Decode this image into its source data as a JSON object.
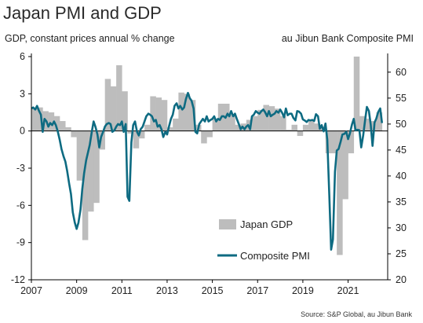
{
  "title": "Japan PMI and GDP",
  "left_axis_caption": "GDP, constant prices annual % change",
  "right_axis_caption": "au Jibun Bank Composite PMI",
  "source": "Source: S&P Global, au Jibun Bank",
  "colors": {
    "gdp_bar": "#bdbdbd",
    "pmi_line": "#0e6b82",
    "axis": "#000000"
  },
  "chart_data": {
    "type": "bar+line",
    "title": "Japan PMI and GDP",
    "x_ticks": [
      "2007",
      "2009",
      "2011",
      "2013",
      "2015",
      "2017",
      "2019",
      "2021"
    ],
    "left_axis": {
      "label": "GDP, constant prices annual % change",
      "range": [
        -12,
        6
      ],
      "ticks": [
        "6",
        "3",
        "0",
        "-3",
        "-6",
        "-9",
        "-12"
      ]
    },
    "right_axis": {
      "label": "au Jibun Bank Composite PMI",
      "range": [
        20,
        63
      ],
      "ticks": [
        "60",
        "55",
        "50",
        "45",
        "40",
        "35",
        "30",
        "25",
        "20"
      ]
    },
    "legend": [
      "Japan GDP",
      "Composite PMI"
    ],
    "series": [
      {
        "name": "Japan GDP",
        "kind": "bar",
        "axis": "left",
        "points": [
          [
            2007.0,
            1.8
          ],
          [
            2007.25,
            1.9
          ],
          [
            2007.5,
            1.6
          ],
          [
            2007.75,
            1.5
          ],
          [
            2008.0,
            1.2
          ],
          [
            2008.25,
            0.8
          ],
          [
            2008.5,
            0.3
          ],
          [
            2008.75,
            -0.5
          ],
          [
            2009.0,
            -4.0
          ],
          [
            2009.25,
            -8.8
          ],
          [
            2009.5,
            -6.5
          ],
          [
            2009.75,
            -5.8
          ],
          [
            2010.0,
            -1.5
          ],
          [
            2010.25,
            4.2
          ],
          [
            2010.5,
            3.6
          ],
          [
            2010.75,
            5.3
          ],
          [
            2011.0,
            3.2
          ],
          [
            2011.25,
            -0.2
          ],
          [
            2011.5,
            -1.4
          ],
          [
            2011.75,
            -0.6
          ],
          [
            2012.0,
            0.5
          ],
          [
            2012.25,
            2.8
          ],
          [
            2012.5,
            2.7
          ],
          [
            2012.75,
            2.5
          ],
          [
            2013.0,
            0.3
          ],
          [
            2013.25,
            1.0
          ],
          [
            2013.5,
            3.1
          ],
          [
            2013.75,
            3.0
          ],
          [
            2014.0,
            2.5
          ],
          [
            2014.25,
            0.5
          ],
          [
            2014.5,
            -1.0
          ],
          [
            2014.75,
            -0.5
          ],
          [
            2015.0,
            1.0
          ],
          [
            2015.25,
            2.2
          ],
          [
            2015.5,
            2.2
          ],
          [
            2015.75,
            1.3
          ],
          [
            2016.0,
            0.5
          ],
          [
            2016.25,
            0.6
          ],
          [
            2016.5,
            0.9
          ],
          [
            2016.75,
            1.2
          ],
          [
            2017.0,
            1.7
          ],
          [
            2017.25,
            2.1
          ],
          [
            2017.5,
            2.0
          ],
          [
            2017.75,
            1.8
          ],
          [
            2018.0,
            1.2
          ],
          [
            2018.25,
            0.1
          ],
          [
            2018.5,
            0.5
          ],
          [
            2018.75,
            -0.4
          ],
          [
            2019.0,
            0.5
          ],
          [
            2019.25,
            0.8
          ],
          [
            2019.5,
            0.6
          ],
          [
            2019.75,
            0.3
          ],
          [
            2020.0,
            -1.8
          ],
          [
            2020.25,
            -1.8
          ],
          [
            2020.5,
            -10.0
          ],
          [
            2020.75,
            -5.5
          ],
          [
            2021.0,
            -1.8
          ],
          [
            2021.25,
            6.0
          ],
          [
            2021.5,
            1.2
          ],
          [
            2021.75,
            1.0
          ],
          [
            2022.0,
            0.8
          ],
          [
            2022.25,
            1.5
          ]
        ]
      },
      {
        "name": "Composite PMI",
        "kind": "line",
        "axis": "right",
        "points": [
          [
            2007.0,
            53.0
          ],
          [
            2007.08,
            53.2
          ],
          [
            2007.17,
            52.8
          ],
          [
            2007.25,
            53.5
          ],
          [
            2007.33,
            52.6
          ],
          [
            2007.42,
            51.8
          ],
          [
            2007.5,
            48.5
          ],
          [
            2007.58,
            51.0
          ],
          [
            2007.67,
            50.5
          ],
          [
            2007.75,
            49.5
          ],
          [
            2007.83,
            50.2
          ],
          [
            2007.92,
            49.8
          ],
          [
            2008.0,
            50.5
          ],
          [
            2008.08,
            49.8
          ],
          [
            2008.17,
            48.5
          ],
          [
            2008.25,
            47.0
          ],
          [
            2008.33,
            45.2
          ],
          [
            2008.42,
            43.8
          ],
          [
            2008.5,
            42.8
          ],
          [
            2008.58,
            41.0
          ],
          [
            2008.67,
            38.5
          ],
          [
            2008.75,
            36.5
          ],
          [
            2008.83,
            33.0
          ],
          [
            2008.92,
            31.0
          ],
          [
            2009.0,
            29.8
          ],
          [
            2009.08,
            31.0
          ],
          [
            2009.17,
            33.5
          ],
          [
            2009.25,
            37.5
          ],
          [
            2009.33,
            40.5
          ],
          [
            2009.42,
            43.0
          ],
          [
            2009.5,
            44.5
          ],
          [
            2009.58,
            46.0
          ],
          [
            2009.67,
            48.5
          ],
          [
            2009.75,
            50.5
          ],
          [
            2009.83,
            49.5
          ],
          [
            2009.92,
            48.0
          ],
          [
            2010.0,
            45.5
          ],
          [
            2010.08,
            47.5
          ],
          [
            2010.17,
            48.5
          ],
          [
            2010.25,
            49.5
          ],
          [
            2010.33,
            50.0
          ],
          [
            2010.42,
            50.2
          ],
          [
            2010.5,
            50.0
          ],
          [
            2010.58,
            48.5
          ],
          [
            2010.67,
            48.8
          ],
          [
            2010.75,
            49.5
          ],
          [
            2010.83,
            50.0
          ],
          [
            2010.92,
            49.8
          ],
          [
            2011.0,
            50.5
          ],
          [
            2011.08,
            48.5
          ],
          [
            2011.17,
            50.0
          ],
          [
            2011.25,
            36.0
          ],
          [
            2011.33,
            35.2
          ],
          [
            2011.42,
            46.5
          ],
          [
            2011.5,
            49.8
          ],
          [
            2011.58,
            50.5
          ],
          [
            2011.67,
            48.5
          ],
          [
            2011.75,
            47.8
          ],
          [
            2011.83,
            49.0
          ],
          [
            2011.92,
            49.5
          ],
          [
            2012.0,
            50.5
          ],
          [
            2012.08,
            51.5
          ],
          [
            2012.17,
            52.0
          ],
          [
            2012.25,
            51.8
          ],
          [
            2012.33,
            51.5
          ],
          [
            2012.42,
            50.5
          ],
          [
            2012.5,
            50.8
          ],
          [
            2012.58,
            49.5
          ],
          [
            2012.67,
            49.8
          ],
          [
            2012.75,
            49.0
          ],
          [
            2012.83,
            47.5
          ],
          [
            2012.92,
            48.5
          ],
          [
            2013.0,
            48.0
          ],
          [
            2013.08,
            49.5
          ],
          [
            2013.17,
            51.0
          ],
          [
            2013.25,
            51.8
          ],
          [
            2013.33,
            53.5
          ],
          [
            2013.42,
            54.0
          ],
          [
            2013.5,
            53.0
          ],
          [
            2013.58,
            53.5
          ],
          [
            2013.67,
            52.8
          ],
          [
            2013.75,
            53.2
          ],
          [
            2013.83,
            54.8
          ],
          [
            2013.92,
            56.0
          ],
          [
            2014.0,
            55.0
          ],
          [
            2014.08,
            54.5
          ],
          [
            2014.17,
            53.0
          ],
          [
            2014.25,
            48.5
          ],
          [
            2014.33,
            48.2
          ],
          [
            2014.42,
            50.0
          ],
          [
            2014.5,
            50.5
          ],
          [
            2014.58,
            51.0
          ],
          [
            2014.67,
            50.5
          ],
          [
            2014.75,
            51.5
          ],
          [
            2014.83,
            50.5
          ],
          [
            2014.92,
            50.8
          ],
          [
            2015.0,
            51.0
          ],
          [
            2015.08,
            51.5
          ],
          [
            2015.17,
            50.5
          ],
          [
            2015.25,
            51.0
          ],
          [
            2015.33,
            50.8
          ],
          [
            2015.42,
            51.5
          ],
          [
            2015.5,
            51.5
          ],
          [
            2015.58,
            51.2
          ],
          [
            2015.67,
            52.0
          ],
          [
            2015.75,
            51.5
          ],
          [
            2015.83,
            52.5
          ],
          [
            2015.92,
            51.5
          ],
          [
            2016.0,
            52.0
          ],
          [
            2016.08,
            51.0
          ],
          [
            2016.17,
            50.0
          ],
          [
            2016.25,
            49.0
          ],
          [
            2016.33,
            49.5
          ],
          [
            2016.42,
            49.0
          ],
          [
            2016.5,
            49.5
          ],
          [
            2016.58,
            49.8
          ],
          [
            2016.67,
            49.0
          ],
          [
            2016.75,
            51.5
          ],
          [
            2016.83,
            51.8
          ],
          [
            2016.92,
            52.5
          ],
          [
            2017.0,
            52.2
          ],
          [
            2017.08,
            52.0
          ],
          [
            2017.17,
            52.5
          ],
          [
            2017.25,
            52.8
          ],
          [
            2017.33,
            52.3
          ],
          [
            2017.42,
            51.5
          ],
          [
            2017.5,
            52.5
          ],
          [
            2017.58,
            51.5
          ],
          [
            2017.67,
            51.8
          ],
          [
            2017.75,
            52.0
          ],
          [
            2017.83,
            52.5
          ],
          [
            2017.92,
            52.2
          ],
          [
            2018.0,
            52.8
          ],
          [
            2018.08,
            52.2
          ],
          [
            2018.17,
            51.3
          ],
          [
            2018.25,
            53.0
          ],
          [
            2018.33,
            51.7
          ],
          [
            2018.42,
            52.0
          ],
          [
            2018.5,
            52.0
          ],
          [
            2018.58,
            51.2
          ],
          [
            2018.67,
            50.7
          ],
          [
            2018.75,
            52.5
          ],
          [
            2018.83,
            52.4
          ],
          [
            2018.92,
            52.0
          ],
          [
            2019.0,
            50.9
          ],
          [
            2019.08,
            50.7
          ],
          [
            2019.17,
            50.4
          ],
          [
            2019.25,
            50.8
          ],
          [
            2019.33,
            50.7
          ],
          [
            2019.42,
            50.8
          ],
          [
            2019.5,
            50.6
          ],
          [
            2019.58,
            51.9
          ],
          [
            2019.67,
            51.5
          ],
          [
            2019.75,
            49.1
          ],
          [
            2019.83,
            49.8
          ],
          [
            2019.92,
            48.6
          ],
          [
            2020.0,
            50.1
          ],
          [
            2020.08,
            47.0
          ],
          [
            2020.17,
            36.2
          ],
          [
            2020.25,
            25.8
          ],
          [
            2020.33,
            27.8
          ],
          [
            2020.42,
            40.8
          ],
          [
            2020.5,
            44.9
          ],
          [
            2020.58,
            45.2
          ],
          [
            2020.67,
            46.6
          ],
          [
            2020.75,
            48.0
          ],
          [
            2020.83,
            48.1
          ],
          [
            2020.92,
            48.5
          ],
          [
            2021.0,
            47.1
          ],
          [
            2021.08,
            48.2
          ],
          [
            2021.17,
            49.9
          ],
          [
            2021.25,
            51.0
          ],
          [
            2021.33,
            48.8
          ],
          [
            2021.42,
            48.9
          ],
          [
            2021.5,
            48.8
          ],
          [
            2021.58,
            45.5
          ],
          [
            2021.67,
            47.9
          ],
          [
            2021.75,
            50.7
          ],
          [
            2021.83,
            53.3
          ],
          [
            2021.92,
            52.5
          ],
          [
            2022.0,
            49.9
          ],
          [
            2022.08,
            45.8
          ],
          [
            2022.17,
            50.3
          ],
          [
            2022.25,
            51.1
          ],
          [
            2022.33,
            52.3
          ],
          [
            2022.42,
            53.0
          ],
          [
            2022.5,
            50.2
          ]
        ]
      }
    ]
  }
}
